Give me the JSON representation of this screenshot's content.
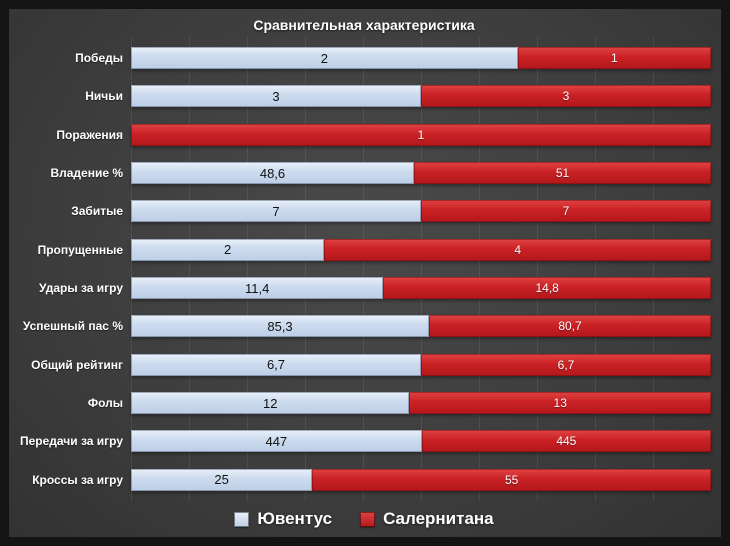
{
  "title": "Сравнительная характеристика",
  "colors": {
    "juventus": "#ccdaee",
    "salernitana": "#c92125",
    "background": "#3e3e3e",
    "frame_border": "#141414",
    "text": "#ffffff"
  },
  "legend": {
    "position": "bottom",
    "items": [
      {
        "label": "Ювентус",
        "color": "#ccdaee"
      },
      {
        "label": "Салернитана",
        "color": "#c92125"
      }
    ]
  },
  "chart_data": {
    "type": "bar",
    "orientation": "horizontal",
    "stacked": true,
    "proportional": true,
    "title": "Сравнительная характеристика",
    "xlabel": "",
    "ylabel": "",
    "grid": "faint vertical gridlines",
    "legend_position": "bottom",
    "categories": [
      "Победы",
      "Ничьи",
      "Поражения",
      "Владение %",
      "Забитые",
      "Пропущенные",
      "Удары за игру",
      "Успешный пас %",
      "Общий рейтинг",
      "Фолы",
      "Передачи за игру",
      "Кроссы за игру"
    ],
    "series": [
      {
        "name": "Ювентус",
        "color": "#ccdaee",
        "values": [
          2,
          3,
          0,
          48.6,
          7,
          2,
          11.4,
          85.3,
          6.7,
          12,
          447,
          25
        ],
        "labels": [
          "2",
          "3",
          "",
          "48,6",
          "7",
          "2",
          "11,4",
          "85,3",
          "6,7",
          "12",
          "447",
          "25"
        ]
      },
      {
        "name": "Салернитана",
        "color": "#c92125",
        "values": [
          1,
          3,
          1,
          51,
          7,
          4,
          14.8,
          80.7,
          6.7,
          13,
          445,
          55
        ],
        "labels": [
          "1",
          "3",
          "1",
          "51",
          "7",
          "4",
          "14,8",
          "80,7",
          "6,7",
          "13",
          "445",
          "55"
        ]
      }
    ]
  }
}
